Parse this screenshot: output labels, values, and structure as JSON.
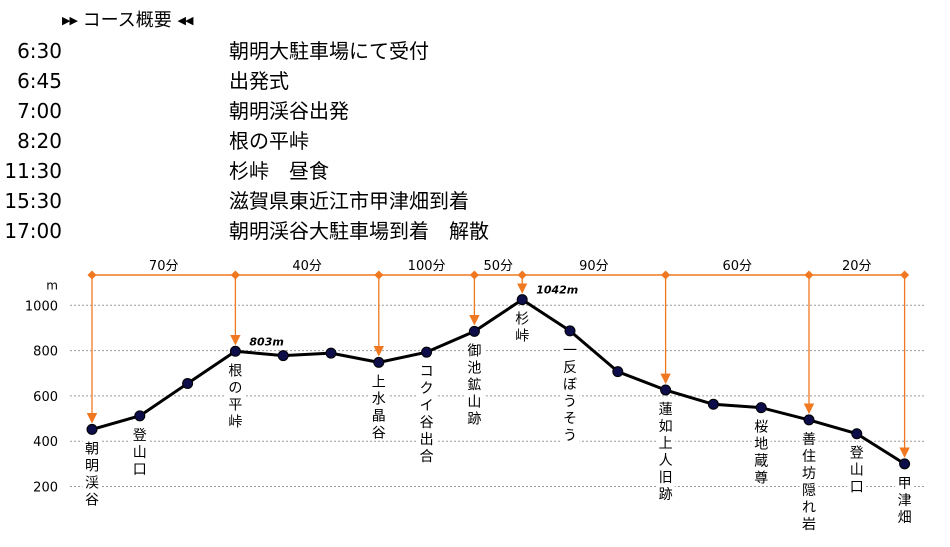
{
  "schedule": {
    "title": "コース概要",
    "rows": [
      {
        "time": "6:30",
        "event": "朝明大駐車場にて受付"
      },
      {
        "time": "6:45",
        "event": "出発式"
      },
      {
        "time": "7:00",
        "event": "朝明渓谷出発"
      },
      {
        "time": "8:20",
        "event": "根の平峠"
      },
      {
        "time": "11:30",
        "event": "杉峠　昼食"
      },
      {
        "time": "15:30",
        "event": "滋賀県東近江市甲津畑到着"
      },
      {
        "time": "17:00",
        "event": "朝明渓谷大駐車場到着　解散"
      }
    ]
  },
  "chart_data": {
    "type": "line",
    "ylabel": "m",
    "yticks": [
      200,
      400,
      600,
      800,
      1000
    ],
    "ylim": [
      200,
      1000
    ],
    "grid": true,
    "line_color": "#000000",
    "marker_color": "#0d0d4a",
    "accent_color": "#f07820",
    "points": [
      {
        "elevation": 452,
        "label": "朝明渓谷"
      },
      {
        "elevation": 512,
        "label": "登山口"
      },
      {
        "elevation": 655,
        "label": ""
      },
      {
        "elevation": 797,
        "label": "根の平峠"
      },
      {
        "elevation": 778,
        "label": ""
      },
      {
        "elevation": 789,
        "label": ""
      },
      {
        "elevation": 748,
        "label": "上水晶谷"
      },
      {
        "elevation": 793,
        "label": "コクイ谷出合"
      },
      {
        "elevation": 885,
        "label": "御池鉱山跡"
      },
      {
        "elevation": 1025,
        "label": "杉峠"
      },
      {
        "elevation": 887,
        "label": "一反ぼうそう"
      },
      {
        "elevation": 707,
        "label": ""
      },
      {
        "elevation": 626,
        "label": "蓮如上人旧跡"
      },
      {
        "elevation": 563,
        "label": ""
      },
      {
        "elevation": 548,
        "label": "桜地蔵尊"
      },
      {
        "elevation": 494,
        "label": "善住坊隠れ岩"
      },
      {
        "elevation": 433,
        "label": "登山口"
      },
      {
        "elevation": 300,
        "label": "甲津畑"
      }
    ],
    "annotations": [
      {
        "point": 3,
        "text": "803m"
      },
      {
        "point": 9,
        "text": "1042m"
      }
    ],
    "segments": [
      {
        "from": 0,
        "to": 3,
        "label": "70分"
      },
      {
        "from": 3,
        "to": 6,
        "label": "40分"
      },
      {
        "from": 6,
        "to": 8,
        "label": "100分"
      },
      {
        "from": 8,
        "to": 9,
        "label": "50分"
      },
      {
        "from": 9,
        "to": 12,
        "label": "90分"
      },
      {
        "from": 12,
        "to": 15,
        "label": "60分"
      },
      {
        "from": 15,
        "to": 17,
        "label": "20分"
      }
    ]
  }
}
